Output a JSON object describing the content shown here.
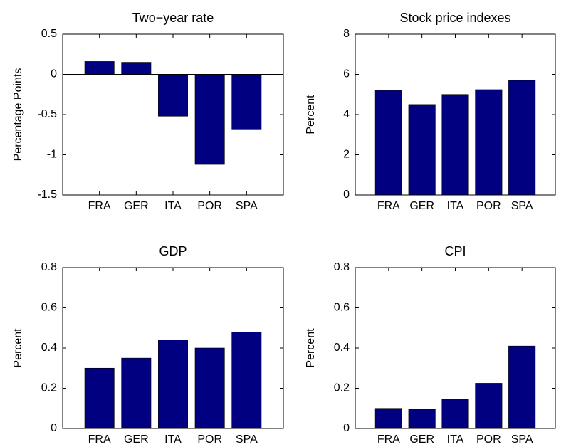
{
  "chart_data": [
    {
      "type": "bar",
      "title": "Two−year rate",
      "ylabel": "Percentage Points",
      "categories": [
        "FRA",
        "GER",
        "ITA",
        "POR",
        "SPA"
      ],
      "values": [
        0.16,
        0.15,
        -0.52,
        -1.12,
        -0.68
      ],
      "color": "#000080",
      "ylim": [
        -1.5,
        0.5
      ],
      "yticks": [
        -1.5,
        -1,
        -0.5,
        0,
        0.5
      ]
    },
    {
      "type": "bar",
      "title": "Stock price indexes",
      "ylabel": "Percent",
      "categories": [
        "FRA",
        "GER",
        "ITA",
        "POR",
        "SPA"
      ],
      "values": [
        5.2,
        4.5,
        5.0,
        5.24,
        5.7
      ],
      "color": "#000080",
      "ylim": [
        0,
        8
      ],
      "yticks": [
        0,
        2,
        4,
        6,
        8
      ]
    },
    {
      "type": "bar",
      "title": "GDP",
      "ylabel": "Percent",
      "categories": [
        "FRA",
        "GER",
        "ITA",
        "POR",
        "SPA"
      ],
      "values": [
        0.3,
        0.35,
        0.44,
        0.4,
        0.48
      ],
      "color": "#000080",
      "ylim": [
        0,
        0.8
      ],
      "yticks": [
        0,
        0.2,
        0.4,
        0.6,
        0.8
      ]
    },
    {
      "type": "bar",
      "title": "CPI",
      "ylabel": "Percent",
      "categories": [
        "FRA",
        "GER",
        "ITA",
        "POR",
        "SPA"
      ],
      "values": [
        0.1,
        0.095,
        0.145,
        0.225,
        0.41
      ],
      "color": "#000080",
      "ylim": [
        0,
        0.8
      ],
      "yticks": [
        0,
        0.2,
        0.4,
        0.6,
        0.8
      ]
    }
  ]
}
